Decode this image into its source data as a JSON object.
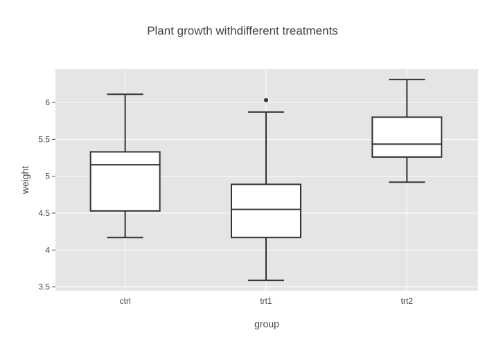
{
  "chart_data": {
    "type": "box",
    "title": "Plant growth withdifferent treatments",
    "xlabel": "group",
    "ylabel": "weight",
    "categories": [
      "ctrl",
      "trt1",
      "trt2"
    ],
    "boxes": [
      {
        "name": "ctrl",
        "whisker_low": 4.17,
        "q1": 4.53,
        "median": 5.155,
        "q3": 5.33,
        "whisker_high": 6.11,
        "outliers": []
      },
      {
        "name": "trt1",
        "whisker_low": 3.59,
        "q1": 4.17,
        "median": 4.55,
        "q3": 4.89,
        "whisker_high": 5.87,
        "outliers": [
          6.03
        ]
      },
      {
        "name": "trt2",
        "whisker_low": 4.92,
        "q1": 5.26,
        "median": 5.435,
        "q3": 5.8,
        "whisker_high": 6.31,
        "outliers": []
      }
    ],
    "y_ticks": [
      3.5,
      4,
      4.5,
      5,
      5.5,
      6
    ],
    "ylim": [
      3.45,
      6.45
    ],
    "grid": true,
    "colors": {
      "plot_background": "#e5e5e5",
      "grid": "#ffffff",
      "box_fill": "#ffffff",
      "box_line": "#333333",
      "text": "#444444"
    }
  }
}
